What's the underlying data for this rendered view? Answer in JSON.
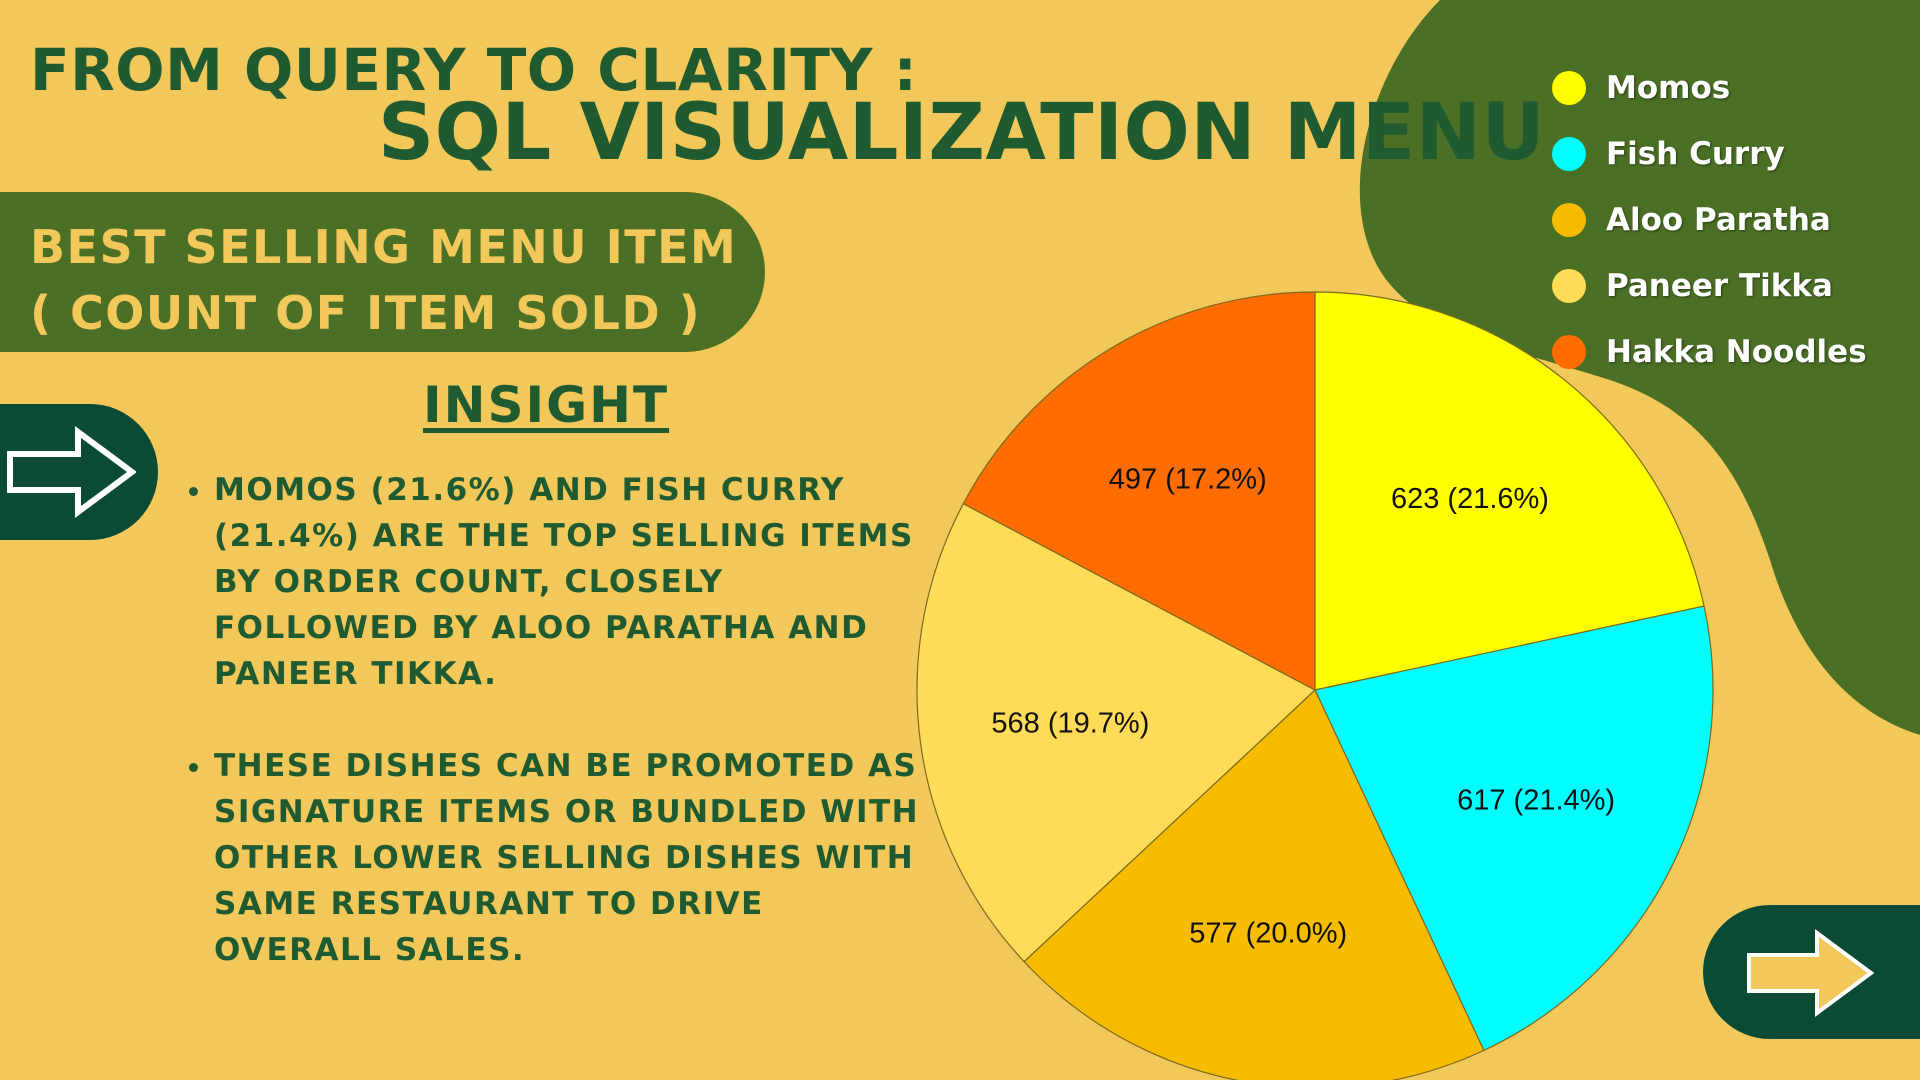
{
  "title": {
    "line1": "FROM QUERY TO CLARITY :",
    "line2": "SQL VISUALIZATION MENU"
  },
  "subtitle": {
    "line1": "BEST SELLING MENU ITEM",
    "line2": "( COUNT OF ITEM SOLD )"
  },
  "insight": {
    "heading": "INSIGHT",
    "bullets": [
      "MOMOS (21.6%) AND FISH CURRY (21.4%) ARE THE TOP SELLING ITEMS BY ORDER COUNT, CLOSELY FOLLOWED BY ALOO PARATHA AND PANEER TIKKA.",
      "THESE DISHES CAN BE PROMOTED AS SIGNATURE ITEMS OR BUNDLED WITH OTHER LOWER SELLING DISHES WITH SAME RESTAURANT TO DRIVE OVERALL SALES."
    ]
  },
  "icons": {
    "left_arrow": "right-arrow-icon",
    "right_arrow": "right-arrow-icon"
  },
  "colors": {
    "background": "#f2c85b",
    "dark_green": "#1f5a31",
    "olive_green": "#4b6f24",
    "tab_green": "#0b4a35"
  },
  "chart_data": {
    "type": "pie",
    "legend_position": "top-right",
    "categories": [
      "Momos",
      "Fish Curry",
      "Aloo Paratha",
      "Paneer Tikka",
      "Hakka Noodles"
    ],
    "values": [
      623,
      617,
      577,
      568,
      497
    ],
    "percent_labels": [
      "21.6%",
      "21.4%",
      "20.0%",
      "19.7%",
      "17.2%"
    ],
    "data_labels": [
      "623 (21.6%)",
      "617 (21.4%)",
      "577 (20.0%)",
      "568 (19.7%)",
      "497 (17.2%)"
    ],
    "colors": [
      "#ffff00",
      "#00ffff",
      "#f7bc00",
      "#ffdc58",
      "#ff6d00"
    ]
  }
}
